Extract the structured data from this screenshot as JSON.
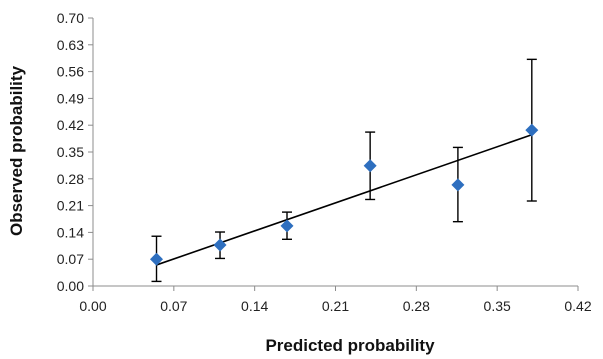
{
  "chart_data": {
    "type": "scatter",
    "title": "",
    "xlabel": "Predicted probability",
    "ylabel": "Observed probability",
    "xlim": [
      0.0,
      0.42
    ],
    "ylim": [
      0.0,
      0.7
    ],
    "x_ticks": [
      "0.00",
      "0.07",
      "0.14",
      "0.21",
      "0.28",
      "0.35",
      "0.42"
    ],
    "y_ticks": [
      "0.00",
      "0.07",
      "0.14",
      "0.21",
      "0.28",
      "0.35",
      "0.42",
      "0.49",
      "0.56",
      "0.63",
      "0.70"
    ],
    "grid": false,
    "legend": "none",
    "series": [
      {
        "marker": "diamond",
        "color": "#2E6FBF",
        "points": [
          {
            "x": 0.055,
            "y": 0.07,
            "lo": 0.012,
            "hi": 0.13
          },
          {
            "x": 0.11,
            "y": 0.107,
            "lo": 0.072,
            "hi": 0.141
          },
          {
            "x": 0.168,
            "y": 0.157,
            "lo": 0.122,
            "hi": 0.193
          },
          {
            "x": 0.24,
            "y": 0.314,
            "lo": 0.226,
            "hi": 0.402
          },
          {
            "x": 0.316,
            "y": 0.264,
            "lo": 0.168,
            "hi": 0.362
          },
          {
            "x": 0.38,
            "y": 0.407,
            "lo": 0.222,
            "hi": 0.592
          }
        ]
      }
    ],
    "trendline": {
      "type": "linear",
      "x": [
        0.055,
        0.38
      ],
      "y": [
        0.055,
        0.395
      ]
    }
  }
}
